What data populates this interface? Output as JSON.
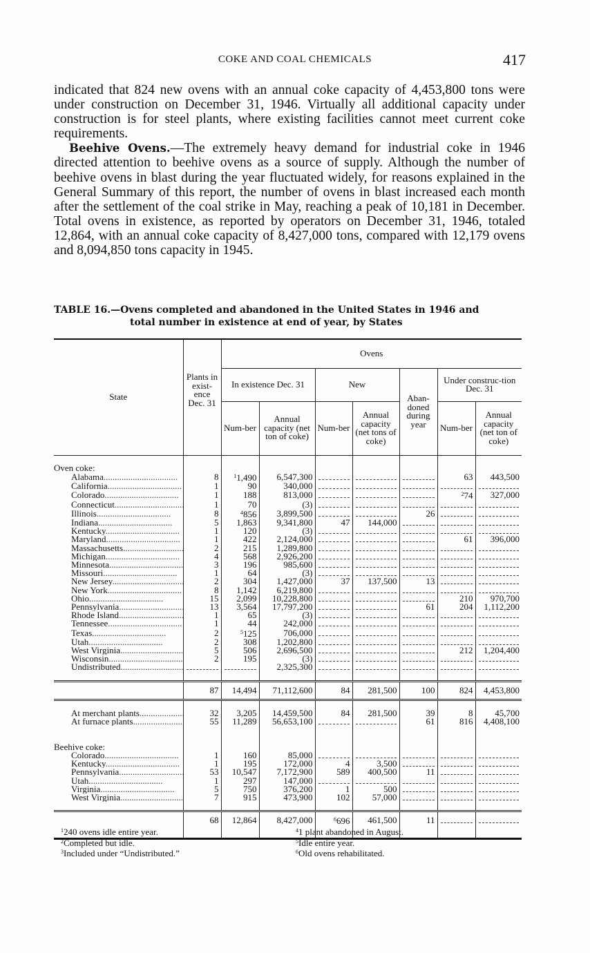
{
  "running_head": "COKE AND COAL CHEMICALS",
  "page_number": "417",
  "paragraphs": [
    {
      "lead": "",
      "text": "indicated that 824 new ovens with an annual coke capacity of 4,453,800 tons were under construction on December 31, 1946. Virtually all additional capacity under construction is for steel plants, where existing facilities cannot meet current coke requirements."
    },
    {
      "lead": "Beehive Ovens.",
      "text": "—The extremely heavy demand for industrial coke in 1946 directed attention to beehive ovens as a source of supply. Although the number of beehive ovens in blast during the year fluctuated widely, for reasons explained in the General Summary of this report, the number of ovens in blast increased each month after the settlement of the coal strike in May, reaching a peak of 10,181 in December. Total ovens in existence, as reported by operators on December 31, 1946, totaled 12,864, with an annual coke capacity of 8,427,000 tons, compared with 12,179 ovens and 8,094,850 tons capacity in 1945."
    }
  ],
  "caption": {
    "line1": "TABLE 16.—Ovens completed and abandoned in the United States in 1946 and",
    "line2": "total number in existence at end of year, by States"
  },
  "table": {
    "headers": {
      "state": "State",
      "plants": "Plants in exist-ence Dec. 31",
      "ovens": "Ovens",
      "in_existence": "In existence Dec. 31",
      "new": "New",
      "abandoned": "Aban-doned during year",
      "under_construction": "Under construc-tion Dec. 31",
      "number": "Num-ber",
      "annual_capacity_ton": "Annual capacity (net ton of coke)",
      "annual_capacity_tons": "Annual capacity (net tons of coke)"
    },
    "groups": [
      {
        "label": "Oven coke:",
        "rows": [
          {
            "state": "Alabama",
            "plants": "8",
            "num_note": "1",
            "num": "1,490",
            "cap": "6,547,300",
            "new_num": "",
            "new_cap": "",
            "aband": "",
            "uc_num": "63",
            "uc_cap": "443,500"
          },
          {
            "state": "California",
            "plants": "1",
            "num": "90",
            "cap": "340,000",
            "new_num": "",
            "new_cap": "",
            "aband": "",
            "uc_num": "",
            "uc_cap": ""
          },
          {
            "state": "Colorado",
            "plants": "1",
            "num": "188",
            "cap": "813,000",
            "new_num": "",
            "new_cap": "",
            "aband": "",
            "uc_note": "2",
            "uc_num": "74",
            "uc_cap": "327,000"
          },
          {
            "state": "Connecticut",
            "plants": "1",
            "num": "70",
            "cap": "(3)",
            "new_num": "",
            "new_cap": "",
            "aband": "",
            "uc_num": "",
            "uc_cap": ""
          },
          {
            "state": "Illinois",
            "plants": "8",
            "num_note": "4",
            "num": "856",
            "cap": "3,899,500",
            "new_num": "",
            "new_cap": "",
            "aband": "26",
            "uc_num": "",
            "uc_cap": ""
          },
          {
            "state": "Indiana",
            "plants": "5",
            "num": "1,863",
            "cap": "9,341,800",
            "new_num": "47",
            "new_cap": "144,000",
            "aband": "",
            "uc_num": "",
            "uc_cap": ""
          },
          {
            "state": "Kentucky",
            "plants": "1",
            "num": "120",
            "cap": "(3)",
            "new_num": "",
            "new_cap": "",
            "aband": "",
            "uc_num": "",
            "uc_cap": ""
          },
          {
            "state": "Maryland",
            "plants": "1",
            "num": "422",
            "cap": "2,124,000",
            "new_num": "",
            "new_cap": "",
            "aband": "",
            "uc_num": "61",
            "uc_cap": "396,000"
          },
          {
            "state": "Massachusetts",
            "plants": "2",
            "num": "215",
            "cap": "1,289,800",
            "new_num": "",
            "new_cap": "",
            "aband": "",
            "uc_num": "",
            "uc_cap": ""
          },
          {
            "state": "Michigan",
            "plants": "4",
            "num": "568",
            "cap": "2,926,200",
            "new_num": "",
            "new_cap": "",
            "aband": "",
            "uc_num": "",
            "uc_cap": ""
          },
          {
            "state": "Minnesota",
            "plants": "3",
            "num": "196",
            "cap": "985,600",
            "new_num": "",
            "new_cap": "",
            "aband": "",
            "uc_num": "",
            "uc_cap": ""
          },
          {
            "state": "Missouri",
            "plants": "1",
            "num": "64",
            "cap": "(3)",
            "new_num": "",
            "new_cap": "",
            "aband": "",
            "uc_num": "",
            "uc_cap": ""
          },
          {
            "state": "New Jersey",
            "plants": "2",
            "num": "304",
            "cap": "1,427,000",
            "new_num": "37",
            "new_cap": "137,500",
            "aband": "13",
            "uc_num": "",
            "uc_cap": ""
          },
          {
            "state": "New York",
            "plants": "8",
            "num": "1,142",
            "cap": "6,219,800",
            "new_num": "",
            "new_cap": "",
            "aband": "",
            "uc_num": "",
            "uc_cap": ""
          },
          {
            "state": "Ohio",
            "plants": "15",
            "num": "2,099",
            "cap": "10,228,800",
            "new_num": "",
            "new_cap": "",
            "aband": "",
            "uc_num": "210",
            "uc_cap": "970,700"
          },
          {
            "state": "Pennsylvania",
            "plants": "13",
            "num": "3,564",
            "cap": "17,797,200",
            "new_num": "",
            "new_cap": "",
            "aband": "61",
            "uc_num": "204",
            "uc_cap": "1,112,200"
          },
          {
            "state": "Rhode Island",
            "plants": "1",
            "num": "65",
            "cap": "(3)",
            "new_num": "",
            "new_cap": "",
            "aband": "",
            "uc_num": "",
            "uc_cap": ""
          },
          {
            "state": "Tennessee",
            "plants": "1",
            "num": "44",
            "cap": "242,000",
            "new_num": "",
            "new_cap": "",
            "aband": "",
            "uc_num": "",
            "uc_cap": ""
          },
          {
            "state": "Texas",
            "plants": "2",
            "num_note": "5",
            "num": "125",
            "cap": "706,000",
            "new_num": "",
            "new_cap": "",
            "aband": "",
            "uc_num": "",
            "uc_cap": ""
          },
          {
            "state": "Utah",
            "plants": "2",
            "num": "308",
            "cap": "1,202,800",
            "new_num": "",
            "new_cap": "",
            "aband": "",
            "uc_num": "",
            "uc_cap": ""
          },
          {
            "state": "West Virginia",
            "plants": "5",
            "num": "506",
            "cap": "2,696,500",
            "new_num": "",
            "new_cap": "",
            "aband": "",
            "uc_num": "212",
            "uc_cap": "1,204,400"
          },
          {
            "state": "Wisconsin",
            "plants": "2",
            "num": "195",
            "cap": "(3)",
            "new_num": "",
            "new_cap": "",
            "aband": "",
            "uc_num": "",
            "uc_cap": ""
          },
          {
            "state": "Undistributed",
            "plants": "",
            "num": "",
            "cap": "2,325,300",
            "new_num": "",
            "new_cap": "",
            "aband": "",
            "uc_num": "",
            "uc_cap": ""
          }
        ],
        "total": {
          "state": "",
          "plants": "87",
          "num": "14,494",
          "cap": "71,112,600",
          "new_num": "84",
          "new_cap": "281,500",
          "aband": "100",
          "uc_num": "824",
          "uc_cap": "4,453,800"
        },
        "breakdown": [
          {
            "state": "At merchant plants",
            "plants": "32",
            "num": "3,205",
            "cap": "14,459,500",
            "new_num": "84",
            "new_cap": "281,500",
            "aband": "39",
            "uc_num": "8",
            "uc_cap": "45,700"
          },
          {
            "state": "At furnace plants",
            "plants": "55",
            "num": "11,289",
            "cap": "56,653,100",
            "new_num": "",
            "new_cap": "",
            "aband": "61",
            "uc_num": "816",
            "uc_cap": "4,408,100"
          }
        ]
      },
      {
        "label": "Beehive coke:",
        "rows": [
          {
            "state": "Colorado",
            "plants": "1",
            "num": "160",
            "cap": "85,000",
            "new_num": "",
            "new_cap": "",
            "aband": "",
            "uc_num": "",
            "uc_cap": ""
          },
          {
            "state": "Kentucky",
            "plants": "1",
            "num": "195",
            "cap": "172,000",
            "new_num": "4",
            "new_cap": "3,500",
            "aband": "",
            "uc_num": "",
            "uc_cap": ""
          },
          {
            "state": "Pennsylvania",
            "plants": "53",
            "num": "10,547",
            "cap": "7,172,900",
            "new_num": "589",
            "new_cap": "400,500",
            "aband": "11",
            "uc_num": "",
            "uc_cap": ""
          },
          {
            "state": "Utah",
            "plants": "1",
            "num": "297",
            "cap": "147,000",
            "new_num": "",
            "new_cap": "",
            "aband": "",
            "uc_num": "",
            "uc_cap": ""
          },
          {
            "state": "Virginia",
            "plants": "5",
            "num": "750",
            "cap": "376,200",
            "new_num": "1",
            "new_cap": "500",
            "aband": "",
            "uc_num": "",
            "uc_cap": ""
          },
          {
            "state": "West Virginia",
            "plants": "7",
            "num": "915",
            "cap": "473,900",
            "new_num": "102",
            "new_cap": "57,000",
            "aband": "",
            "uc_num": "",
            "uc_cap": ""
          }
        ],
        "total": {
          "state": "",
          "plants": "68",
          "num": "12,864",
          "cap": "8,427,000",
          "new_note": "6",
          "new_num": "696",
          "new_cap": "461,500",
          "aband": "11",
          "uc_num": "",
          "uc_cap": ""
        }
      }
    ]
  },
  "footnotes": [
    {
      "mark": "1",
      "text": "240 ovens idle entire year."
    },
    {
      "mark": "2",
      "text": "Completed but idle."
    },
    {
      "mark": "3",
      "text": "Included under “Undistributed.”"
    },
    {
      "mark": "4",
      "text": "1 plant abandoned in August."
    },
    {
      "mark": "5",
      "text": "Idle entire year."
    },
    {
      "mark": "6",
      "text": "Old ovens rehabilitated."
    }
  ]
}
